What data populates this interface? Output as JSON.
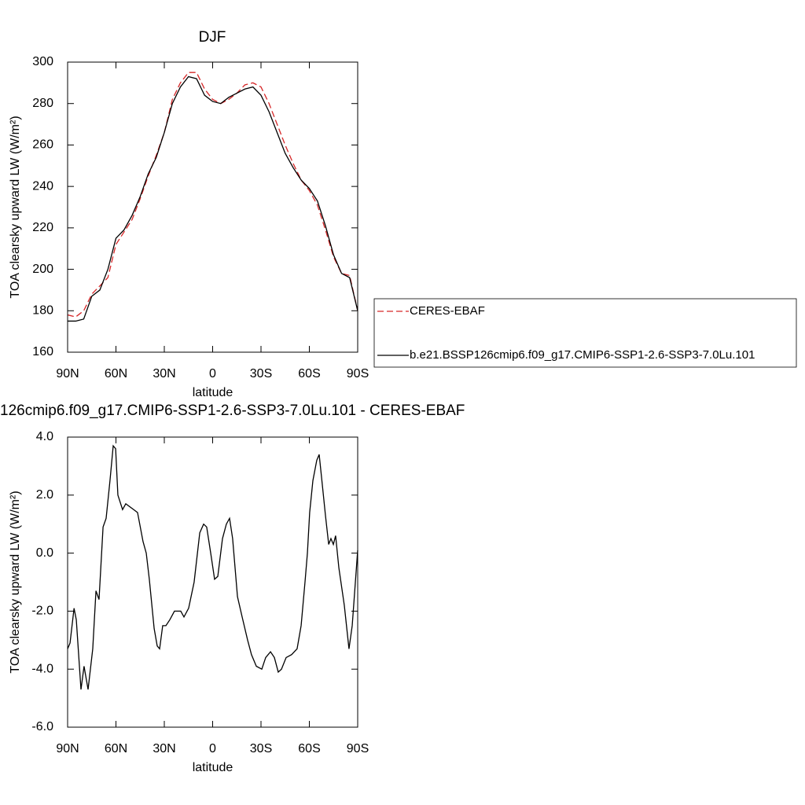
{
  "chart_data": [
    {
      "type": "line",
      "title": "DJF",
      "xlabel": "latitude",
      "ylabel": "TOA clearsky upward LW (W/m²)",
      "x": [
        90,
        85,
        80,
        75,
        70,
        65,
        60,
        55,
        50,
        45,
        40,
        35,
        30,
        25,
        20,
        15,
        10,
        5,
        0,
        -5,
        -10,
        -15,
        -20,
        -25,
        -30,
        -35,
        -40,
        -45,
        -50,
        -55,
        -60,
        -65,
        -70,
        -75,
        -80,
        -85,
        -90
      ],
      "series": [
        {
          "name": "CERES-EBAF",
          "color": "#d62728",
          "line_style": "dashed",
          "values": [
            178,
            177,
            180,
            188,
            192,
            196,
            212,
            218,
            224,
            234,
            245,
            255,
            266,
            282,
            290,
            295,
            295,
            287,
            282,
            280,
            282,
            285,
            289,
            290,
            288,
            280,
            270,
            260,
            251,
            243,
            238,
            231,
            219,
            206,
            198,
            197,
            180
          ]
        },
        {
          "name": "b.e21.BSSP126cmip6.f09_g17.CMIP6-SSP1-2.6-SSP3-7.0Lu.101",
          "color": "#000000",
          "line_style": "solid",
          "values": [
            175,
            175,
            176,
            187,
            190,
            200,
            215,
            219,
            226,
            235,
            246,
            254,
            266,
            280,
            288,
            293,
            292,
            284,
            281,
            280,
            283,
            285,
            287,
            288,
            284,
            276,
            266,
            256,
            249,
            243,
            239,
            233,
            221,
            207,
            198,
            196,
            180
          ]
        }
      ],
      "xlim": [
        90,
        -90
      ],
      "xticks": [
        {
          "value": 90,
          "label": "90N"
        },
        {
          "value": 60,
          "label": "60N"
        },
        {
          "value": 30,
          "label": "30N"
        },
        0,
        {
          "value": -30,
          "label": "30S"
        },
        {
          "value": -60,
          "label": "60S"
        },
        {
          "value": -90,
          "label": "90S"
        }
      ],
      "ylim": [
        160,
        300
      ],
      "yticks": [
        160,
        180,
        200,
        220,
        240,
        260,
        280,
        300
      ],
      "legend": "right"
    },
    {
      "type": "line",
      "title": "126cmip6.f09_g17.CMIP6-SSP1-2.6-SSP3-7.0Lu.101 - CERES-EBAF",
      "xlabel": "latitude",
      "ylabel": "TOA clearsky upward LW (W/m²)",
      "x": [
        90,
        88.5,
        86,
        84.6,
        81.7,
        79.8,
        77.3,
        74.4,
        72.4,
        70.5,
        68,
        66.1,
        63.7,
        61.7,
        60.2,
        58.8,
        55.9,
        53.9,
        49,
        46.6,
        43.2,
        41.2,
        39.3,
        36.3,
        34.4,
        32.9,
        31,
        29,
        26.6,
        23.7,
        19.8,
        17.8,
        14.9,
        11.5,
        8,
        5.6,
        3.7,
        1.2,
        -1.2,
        -3.2,
        -6.1,
        -8.5,
        -10.5,
        -12.4,
        -15.4,
        -18.3,
        -21.7,
        -24.1,
        -27.1,
        -30.5,
        -32.9,
        -35.9,
        -38.3,
        -40.7,
        -42.7,
        -45.6,
        -49,
        -52.4,
        -54.9,
        -57.3,
        -58.8,
        -60.2,
        -62.2,
        -64.6,
        -66.1,
        -67.6,
        -70,
        -72,
        -73.4,
        -74.9,
        -76.3,
        -78.3,
        -81.7,
        -84.6,
        -86.6,
        -90
      ],
      "series": [
        {
          "color": "#000000",
          "line_style": "solid",
          "values": [
            -3.3,
            -3.1,
            -1.9,
            -2.3,
            -4.7,
            -3.9,
            -4.7,
            -3.3,
            -1.3,
            -1.6,
            0.9,
            1.2,
            2.5,
            3.7,
            3.6,
            2.0,
            1.5,
            1.7,
            1.5,
            1.4,
            0.4,
            0,
            -0.9,
            -2.6,
            -3.2,
            -3.3,
            -2.5,
            -2.5,
            -2.3,
            -2.0,
            -2.0,
            -2.2,
            -1.9,
            -1.0,
            0.7,
            1.0,
            0.9,
            0.0,
            -0.9,
            -0.8,
            0.5,
            1.0,
            1.2,
            0.5,
            -1.5,
            -2.2,
            -3.0,
            -3.5,
            -3.9,
            -4.0,
            -3.6,
            -3.4,
            -3.6,
            -4.1,
            -4.0,
            -3.6,
            -3.5,
            -3.3,
            -2.5,
            -1.0,
            0.0,
            1.4,
            2.5,
            3.2,
            3.4,
            2.6,
            1.3,
            0.3,
            0.5,
            0.3,
            0.6,
            -0.5,
            -1.8,
            -3.3,
            -2.5,
            0.1
          ]
        }
      ],
      "xlim": [
        90,
        -90
      ],
      "xticks": [
        {
          "value": 90,
          "label": "90N"
        },
        {
          "value": 60,
          "label": "60N"
        },
        {
          "value": 30,
          "label": "30N"
        },
        0,
        {
          "value": -30,
          "label": "30S"
        },
        {
          "value": -60,
          "label": "60S"
        },
        {
          "value": -90,
          "label": "90S"
        }
      ],
      "ylim": [
        -6,
        4
      ],
      "yticks": [
        {
          "value": -6,
          "label": "-6.0"
        },
        {
          "value": -4,
          "label": "-4.0"
        },
        {
          "value": -2,
          "label": "-2.0"
        },
        {
          "value": 0,
          "label": "0.0"
        },
        {
          "value": 2,
          "label": "2.0"
        },
        {
          "value": 4,
          "label": "4.0"
        }
      ]
    }
  ]
}
